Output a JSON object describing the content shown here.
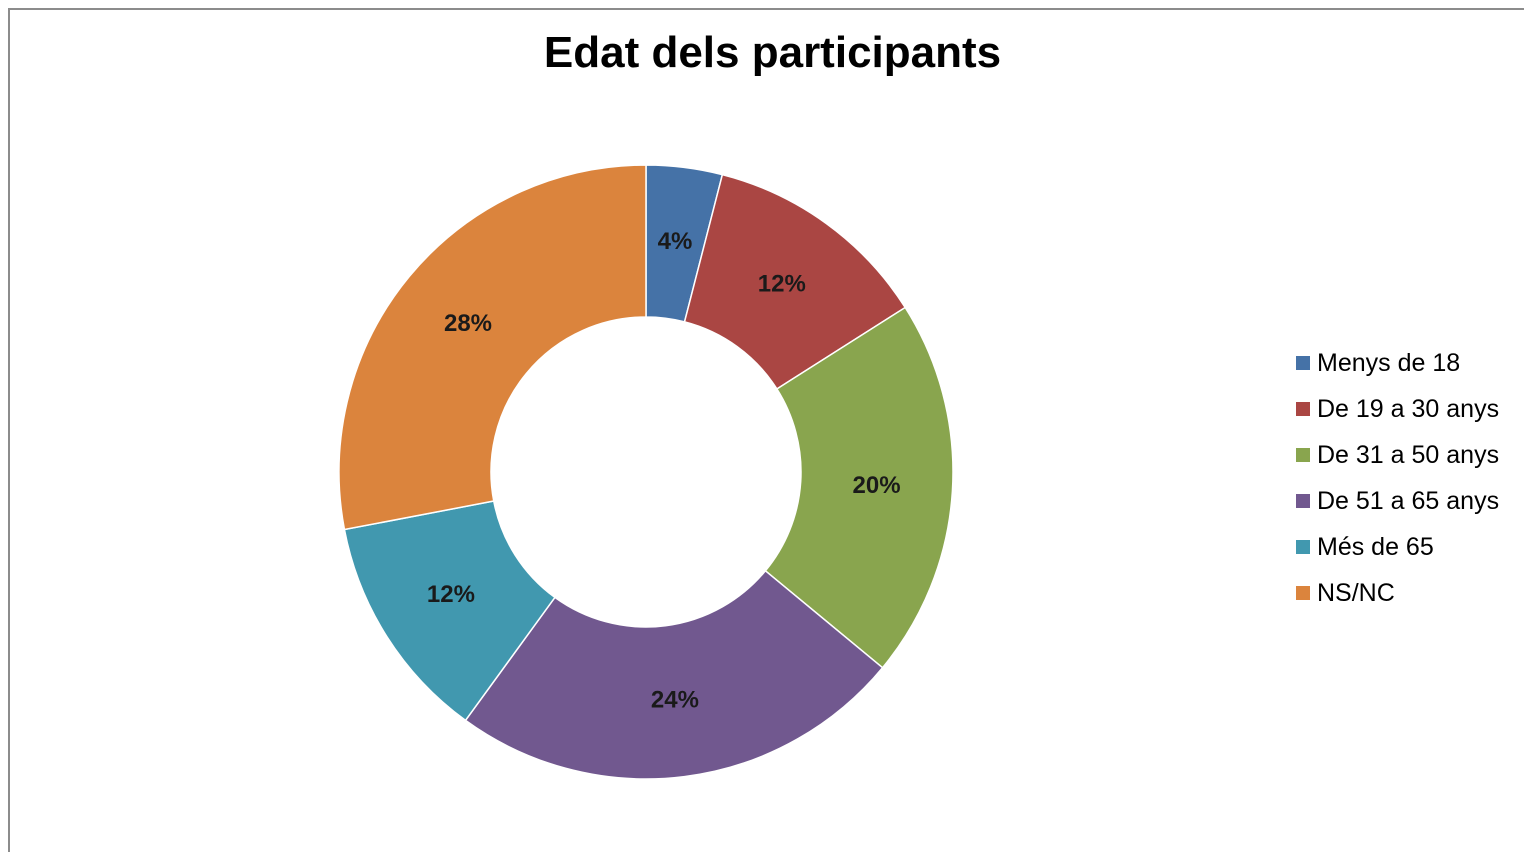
{
  "chart_data": {
    "type": "pie",
    "variant": "donut",
    "title": "Edat dels participants",
    "categories": [
      "Menys de 18",
      "De 19 a 30 anys",
      "De 31 a 50 anys",
      "De 51 a 65 anys",
      "Més de 65",
      "NS/NC"
    ],
    "values": [
      4,
      12,
      20,
      24,
      12,
      28
    ],
    "labels": [
      "4%",
      "12%",
      "20%",
      "24%",
      "12%",
      "28%"
    ],
    "unit": "%",
    "colors": [
      "#4572a7",
      "#aa4643",
      "#89a54e",
      "#71588f",
      "#4198af",
      "#db843d"
    ],
    "legend": "right",
    "grid": false
  }
}
